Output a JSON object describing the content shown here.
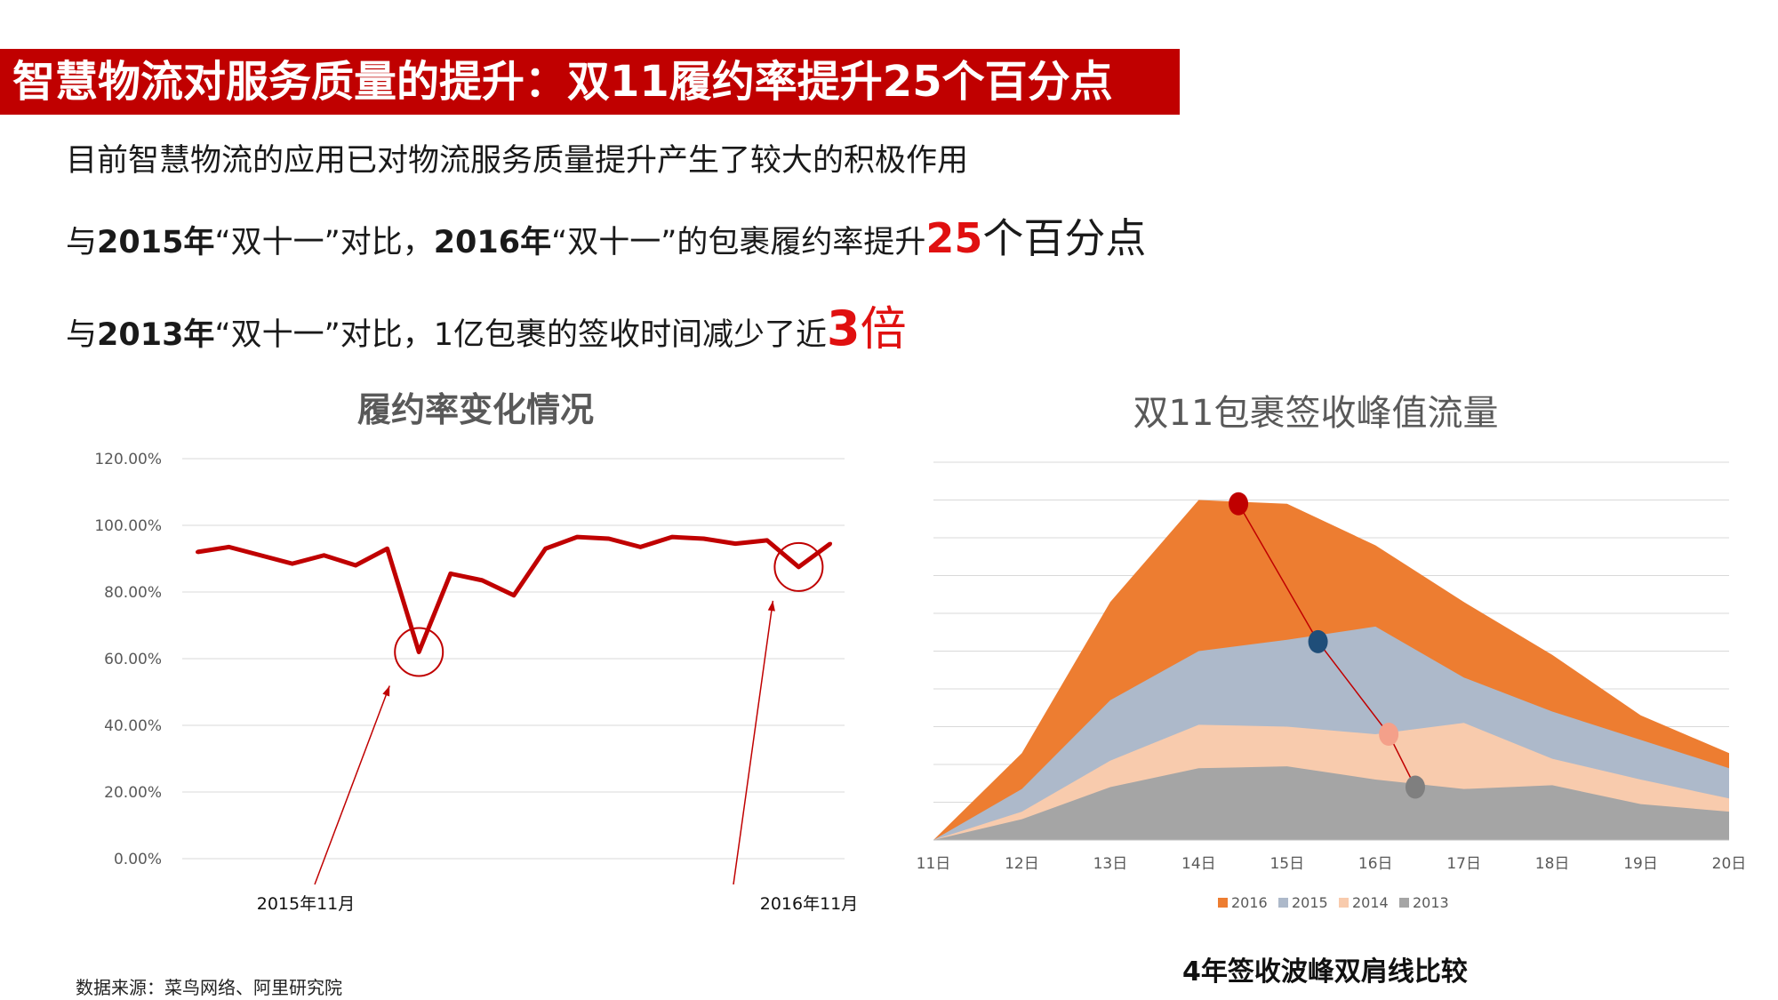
{
  "header": {
    "title": "智慧物流对服务质量的提升：双11履约率提升25个百分点"
  },
  "bullets": {
    "line1": "目前智慧物流的应用已对物流服务质量提升产生了较大的积极作用",
    "line2": {
      "a": "与",
      "b": "2015年",
      "c": "“双十一”对比，",
      "d": "2016年",
      "e": "“双十一”的包裹履约率提升",
      "f": "25",
      "g": "个百分点"
    },
    "line3": {
      "a": "与",
      "b": "2013年",
      "c": "“双十一”对比，",
      "d": "1亿包裹的签收时间减少了近",
      "e": "3",
      "f": "倍"
    }
  },
  "source": "数据来源：菜鸟网络、阿里研究院",
  "colors": {
    "banner": "#c00000",
    "highlight": "#e01010"
  },
  "chart_data": [
    {
      "type": "line",
      "title": "履约率变化情况",
      "ylim": [
        0,
        1.2
      ],
      "y_tick_labels": [
        "0.00%",
        "20.00%",
        "40.00%",
        "60.00%",
        "80.00%",
        "100.00%",
        "120.00%"
      ],
      "x_labels": [
        "2015年11月",
        "2016年11月"
      ],
      "grid": true,
      "series": [
        {
          "color": "#c00000",
          "values": [
            0.92,
            0.935,
            0.91,
            0.885,
            0.91,
            0.88,
            0.93,
            0.62,
            0.855,
            0.835,
            0.79,
            0.93,
            0.965,
            0.96,
            0.935,
            0.965,
            0.96,
            0.945,
            0.955,
            0.875,
            0.945
          ]
        }
      ],
      "annotations": [
        {
          "type": "circle",
          "index": 7
        },
        {
          "type": "circle",
          "index": 19
        }
      ]
    },
    {
      "type": "area",
      "title": "双11包裹签收峰值流量",
      "caption": "4年签收波峰双肩线比较",
      "categories": [
        "11日",
        "12日",
        "13日",
        "14日",
        "15日",
        "16日",
        "17日",
        "18日",
        "19日",
        "20日"
      ],
      "ylim": [
        0,
        10
      ],
      "grid": true,
      "legend_position": "bottom",
      "series": [
        {
          "name": "2016",
          "color": "#ed7d31",
          "values": [
            0,
            2.3,
            6.3,
            9.0,
            8.9,
            7.8,
            6.3,
            4.9,
            3.3,
            2.3
          ]
        },
        {
          "name": "2015",
          "color": "#adb9ca",
          "values": [
            0,
            1.35,
            3.7,
            5.0,
            5.3,
            5.65,
            4.3,
            3.4,
            2.65,
            1.9
          ]
        },
        {
          "name": "2014",
          "color": "#f8cbad",
          "values": [
            0,
            0.75,
            2.1,
            3.05,
            3.0,
            2.8,
            3.1,
            2.15,
            1.6,
            1.1
          ]
        },
        {
          "name": "2013",
          "color": "#a5a5a5",
          "values": [
            0,
            0.55,
            1.4,
            1.9,
            1.95,
            1.6,
            1.35,
            1.45,
            0.95,
            0.75
          ]
        }
      ],
      "markers": [
        {
          "series": "2016",
          "x": 14.45,
          "y": 8.9,
          "color": "#c00000"
        },
        {
          "series": "2015",
          "x": 15.35,
          "y": 5.25,
          "color": "#1f4e79"
        },
        {
          "series": "2014",
          "x": 16.15,
          "y": 2.8,
          "color": "#f4a08a"
        },
        {
          "series": "2013",
          "x": 16.45,
          "y": 1.4,
          "color": "#7f7f7f"
        }
      ]
    }
  ]
}
